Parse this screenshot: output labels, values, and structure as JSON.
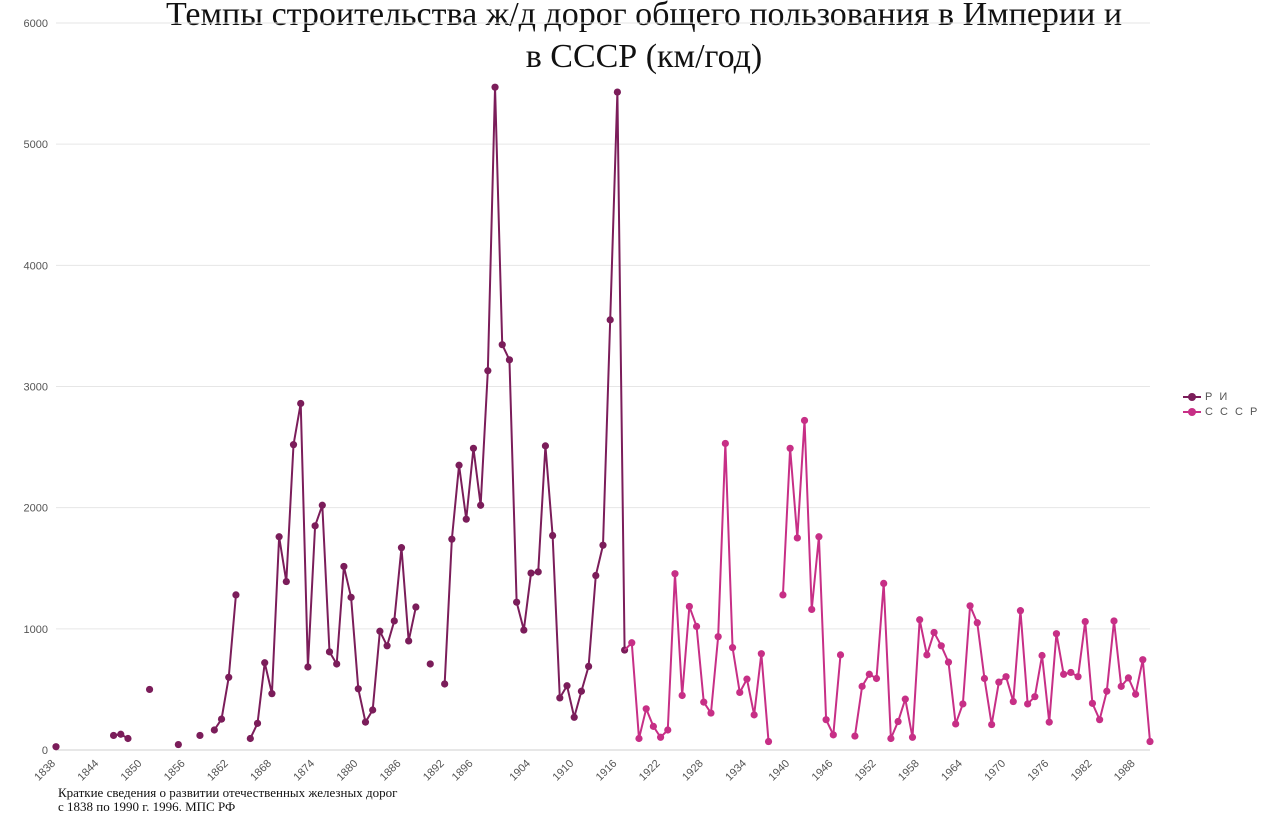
{
  "chart_data": {
    "type": "line",
    "title_line1": "Темпы строительства ж/д дорог общего пользования в Империи и",
    "title_line2": "в СССР (км/год)",
    "ylim": [
      0,
      6000
    ],
    "xlim": [
      1838,
      1990
    ],
    "y_ticks": [
      "0",
      "1000",
      "2000",
      "3000",
      "4000",
      "5000",
      "6000"
    ],
    "x_ticks": [
      "1838",
      "1844",
      "1850",
      "1856",
      "1862",
      "1868",
      "1874",
      "1880",
      "1886",
      "1892",
      "1896",
      "1904",
      "1910",
      "1916",
      "1922",
      "1928",
      "1934",
      "1940",
      "1946",
      "1952",
      "1958",
      "1964",
      "1970",
      "1976",
      "1982",
      "1988"
    ],
    "grid": true,
    "legend_position": "right",
    "series": [
      {
        "name": "Р И",
        "color": "#7b1d5a",
        "points": [
          [
            1838,
            27
          ],
          [
            1846,
            120
          ],
          [
            1847,
            130
          ],
          [
            1848,
            95
          ],
          [
            1851,
            500
          ],
          [
            1855,
            45
          ],
          [
            1858,
            120
          ],
          [
            1860,
            165
          ],
          [
            1861,
            255
          ],
          [
            1862,
            600
          ],
          [
            1863,
            1280
          ],
          [
            1865,
            95
          ],
          [
            1866,
            220
          ],
          [
            1867,
            720
          ],
          [
            1868,
            465
          ],
          [
            1869,
            1760
          ],
          [
            1870,
            1390
          ],
          [
            1871,
            2520
          ],
          [
            1872,
            2860
          ],
          [
            1873,
            685
          ],
          [
            1874,
            1850
          ],
          [
            1875,
            2020
          ],
          [
            1876,
            810
          ],
          [
            1877,
            710
          ],
          [
            1878,
            1515
          ],
          [
            1879,
            1260
          ],
          [
            1880,
            505
          ],
          [
            1881,
            230
          ],
          [
            1882,
            330
          ],
          [
            1883,
            980
          ],
          [
            1884,
            860
          ],
          [
            1885,
            1065
          ],
          [
            1886,
            1670
          ],
          [
            1887,
            900
          ],
          [
            1888,
            1180
          ],
          [
            1890,
            710
          ],
          [
            1892,
            545
          ],
          [
            1893,
            1740
          ],
          [
            1894,
            2350
          ],
          [
            1895,
            1905
          ],
          [
            1896,
            2490
          ],
          [
            1897,
            2020
          ],
          [
            1898,
            3130
          ],
          [
            1899,
            5470
          ],
          [
            1900,
            3345
          ],
          [
            1901,
            3220
          ],
          [
            1902,
            1220
          ],
          [
            1903,
            990
          ],
          [
            1904,
            1460
          ],
          [
            1905,
            1470
          ],
          [
            1906,
            2510
          ],
          [
            1907,
            1770
          ],
          [
            1908,
            430
          ],
          [
            1909,
            530
          ],
          [
            1910,
            270
          ],
          [
            1911,
            485
          ],
          [
            1912,
            690
          ],
          [
            1913,
            1440
          ],
          [
            1914,
            1690
          ],
          [
            1915,
            3550
          ],
          [
            1916,
            5430
          ],
          [
            1917,
            825
          ]
        ]
      },
      {
        "name": "С С С Р",
        "color": "#c72f86",
        "points": [
          [
            1918,
            885
          ],
          [
            1919,
            95
          ],
          [
            1920,
            340
          ],
          [
            1921,
            195
          ],
          [
            1922,
            105
          ],
          [
            1923,
            165
          ],
          [
            1924,
            1455
          ],
          [
            1925,
            450
          ],
          [
            1926,
            1185
          ],
          [
            1927,
            1020
          ],
          [
            1928,
            395
          ],
          [
            1929,
            305
          ],
          [
            1930,
            935
          ],
          [
            1931,
            2530
          ],
          [
            1932,
            845
          ],
          [
            1933,
            475
          ],
          [
            1934,
            585
          ],
          [
            1935,
            290
          ],
          [
            1936,
            795
          ],
          [
            1937,
            70
          ],
          [
            1939,
            1280
          ],
          [
            1940,
            2490
          ],
          [
            1941,
            1750
          ],
          [
            1942,
            2720
          ],
          [
            1943,
            1160
          ],
          [
            1944,
            1760
          ],
          [
            1945,
            250
          ],
          [
            1946,
            125
          ],
          [
            1947,
            785
          ],
          [
            1949,
            115
          ],
          [
            1950,
            525
          ],
          [
            1951,
            625
          ],
          [
            1952,
            590
          ],
          [
            1953,
            1375
          ],
          [
            1954,
            95
          ],
          [
            1955,
            235
          ],
          [
            1956,
            420
          ],
          [
            1957,
            105
          ],
          [
            1958,
            1075
          ],
          [
            1959,
            785
          ],
          [
            1960,
            970
          ],
          [
            1961,
            860
          ],
          [
            1962,
            725
          ],
          [
            1963,
            215
          ],
          [
            1964,
            380
          ],
          [
            1965,
            1190
          ],
          [
            1966,
            1050
          ],
          [
            1967,
            590
          ],
          [
            1968,
            210
          ],
          [
            1969,
            560
          ],
          [
            1970,
            605
          ],
          [
            1971,
            400
          ],
          [
            1972,
            1150
          ],
          [
            1973,
            380
          ],
          [
            1974,
            440
          ],
          [
            1975,
            780
          ],
          [
            1976,
            230
          ],
          [
            1977,
            960
          ],
          [
            1978,
            625
          ],
          [
            1979,
            640
          ],
          [
            1980,
            605
          ],
          [
            1981,
            1060
          ],
          [
            1982,
            385
          ],
          [
            1983,
            250
          ],
          [
            1984,
            485
          ],
          [
            1985,
            1065
          ],
          [
            1986,
            525
          ],
          [
            1987,
            595
          ],
          [
            1988,
            460
          ],
          [
            1989,
            745
          ],
          [
            1990,
            70
          ]
        ]
      }
    ]
  },
  "source_line1": "Краткие сведения о развитии отечественных железных дорог",
  "source_line2": "с 1838 по 1990 г. 1996. МПС РФ"
}
